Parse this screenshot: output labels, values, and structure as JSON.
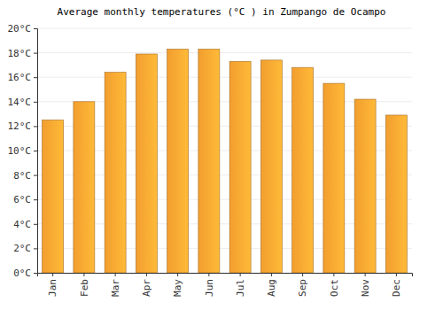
{
  "chart_data": {
    "type": "bar",
    "title": "Average monthly temperatures (°C ) in Zumpango de Ocampo",
    "categories": [
      "Jan",
      "Feb",
      "Mar",
      "Apr",
      "May",
      "Jun",
      "Jul",
      "Aug",
      "Sep",
      "Oct",
      "Nov",
      "Dec"
    ],
    "values": [
      12.5,
      14.0,
      16.4,
      17.9,
      18.3,
      18.3,
      17.3,
      17.4,
      16.8,
      15.5,
      14.2,
      12.9
    ],
    "color": "#fba431",
    "ylim": [
      0,
      20
    ],
    "yticks": [
      {
        "value": 0,
        "label": "0°C"
      },
      {
        "value": 2,
        "label": "2°C"
      },
      {
        "value": 4,
        "label": "4°C"
      },
      {
        "value": 6,
        "label": "6°C"
      },
      {
        "value": 8,
        "label": "8°C"
      },
      {
        "value": 10,
        "label": "10°C"
      },
      {
        "value": 12,
        "label": "12°C"
      },
      {
        "value": 14,
        "label": "14°C"
      },
      {
        "value": 16,
        "label": "16°C"
      },
      {
        "value": 18,
        "label": "18°C"
      },
      {
        "value": 20,
        "label": "20°C"
      }
    ],
    "grid": true
  }
}
